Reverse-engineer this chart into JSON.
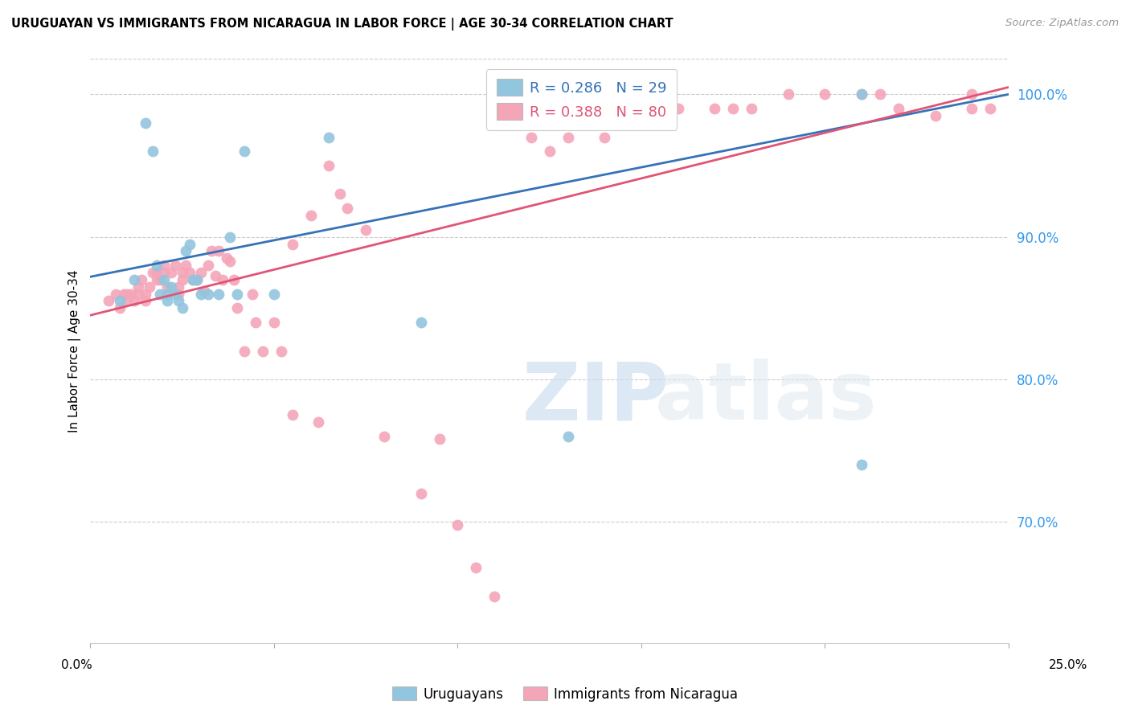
{
  "title": "URUGUAYAN VS IMMIGRANTS FROM NICARAGUA IN LABOR FORCE | AGE 30-34 CORRELATION CHART",
  "source": "Source: ZipAtlas.com",
  "ylabel": "In Labor Force | Age 30-34",
  "y_ticks": [
    0.7,
    0.8,
    0.9,
    1.0
  ],
  "y_tick_labels": [
    "70.0%",
    "80.0%",
    "90.0%",
    "100.0%"
  ],
  "xlim": [
    0.0,
    0.25
  ],
  "ylim": [
    0.615,
    1.025
  ],
  "blue_R": 0.286,
  "blue_N": 29,
  "pink_R": 0.388,
  "pink_N": 80,
  "blue_label": "Uruguayans",
  "pink_label": "Immigrants from Nicaragua",
  "blue_color": "#92c5de",
  "pink_color": "#f4a5b8",
  "blue_line_color": "#3572b8",
  "pink_line_color": "#e05575",
  "blue_line_x": [
    0.0,
    0.25
  ],
  "blue_line_y": [
    0.872,
    1.0
  ],
  "pink_line_x": [
    0.0,
    0.25
  ],
  "pink_line_y": [
    0.845,
    1.005
  ],
  "blue_scatter_x": [
    0.008,
    0.012,
    0.015,
    0.017,
    0.018,
    0.019,
    0.02,
    0.021,
    0.021,
    0.022,
    0.023,
    0.024,
    0.025,
    0.026,
    0.027,
    0.028,
    0.029,
    0.03,
    0.032,
    0.035,
    0.038,
    0.04,
    0.042,
    0.05,
    0.065,
    0.09,
    0.13,
    0.21,
    0.21
  ],
  "blue_scatter_y": [
    0.855,
    0.87,
    0.98,
    0.96,
    0.88,
    0.86,
    0.87,
    0.86,
    0.855,
    0.865,
    0.86,
    0.855,
    0.85,
    0.89,
    0.895,
    0.87,
    0.87,
    0.86,
    0.86,
    0.86,
    0.9,
    0.86,
    0.96,
    0.86,
    0.97,
    0.84,
    0.76,
    0.74,
    1.0
  ],
  "pink_scatter_x": [
    0.005,
    0.007,
    0.008,
    0.009,
    0.01,
    0.01,
    0.011,
    0.012,
    0.013,
    0.013,
    0.014,
    0.015,
    0.015,
    0.016,
    0.017,
    0.018,
    0.018,
    0.019,
    0.02,
    0.02,
    0.021,
    0.022,
    0.023,
    0.024,
    0.024,
    0.025,
    0.025,
    0.026,
    0.027,
    0.028,
    0.029,
    0.03,
    0.031,
    0.032,
    0.033,
    0.034,
    0.035,
    0.036,
    0.037,
    0.038,
    0.039,
    0.04,
    0.042,
    0.044,
    0.045,
    0.047,
    0.05,
    0.052,
    0.055,
    0.055,
    0.06,
    0.062,
    0.065,
    0.068,
    0.07,
    0.075,
    0.08,
    0.09,
    0.095,
    0.1,
    0.105,
    0.11,
    0.12,
    0.125,
    0.13,
    0.14,
    0.15,
    0.16,
    0.17,
    0.175,
    0.18,
    0.19,
    0.2,
    0.21,
    0.215,
    0.22,
    0.23,
    0.24,
    0.24,
    0.245
  ],
  "pink_scatter_y": [
    0.855,
    0.86,
    0.85,
    0.86,
    0.86,
    0.855,
    0.86,
    0.855,
    0.865,
    0.86,
    0.87,
    0.86,
    0.855,
    0.865,
    0.875,
    0.875,
    0.87,
    0.87,
    0.88,
    0.875,
    0.865,
    0.875,
    0.88,
    0.865,
    0.86,
    0.875,
    0.87,
    0.88,
    0.875,
    0.87,
    0.87,
    0.875,
    0.862,
    0.88,
    0.89,
    0.873,
    0.89,
    0.87,
    0.885,
    0.883,
    0.87,
    0.85,
    0.82,
    0.86,
    0.84,
    0.82,
    0.84,
    0.82,
    0.895,
    0.775,
    0.915,
    0.77,
    0.95,
    0.93,
    0.92,
    0.905,
    0.76,
    0.72,
    0.758,
    0.698,
    0.668,
    0.648,
    0.97,
    0.96,
    0.97,
    0.97,
    0.985,
    0.99,
    0.99,
    0.99,
    0.99,
    1.0,
    1.0,
    1.0,
    1.0,
    0.99,
    0.985,
    0.99,
    1.0,
    0.99
  ]
}
